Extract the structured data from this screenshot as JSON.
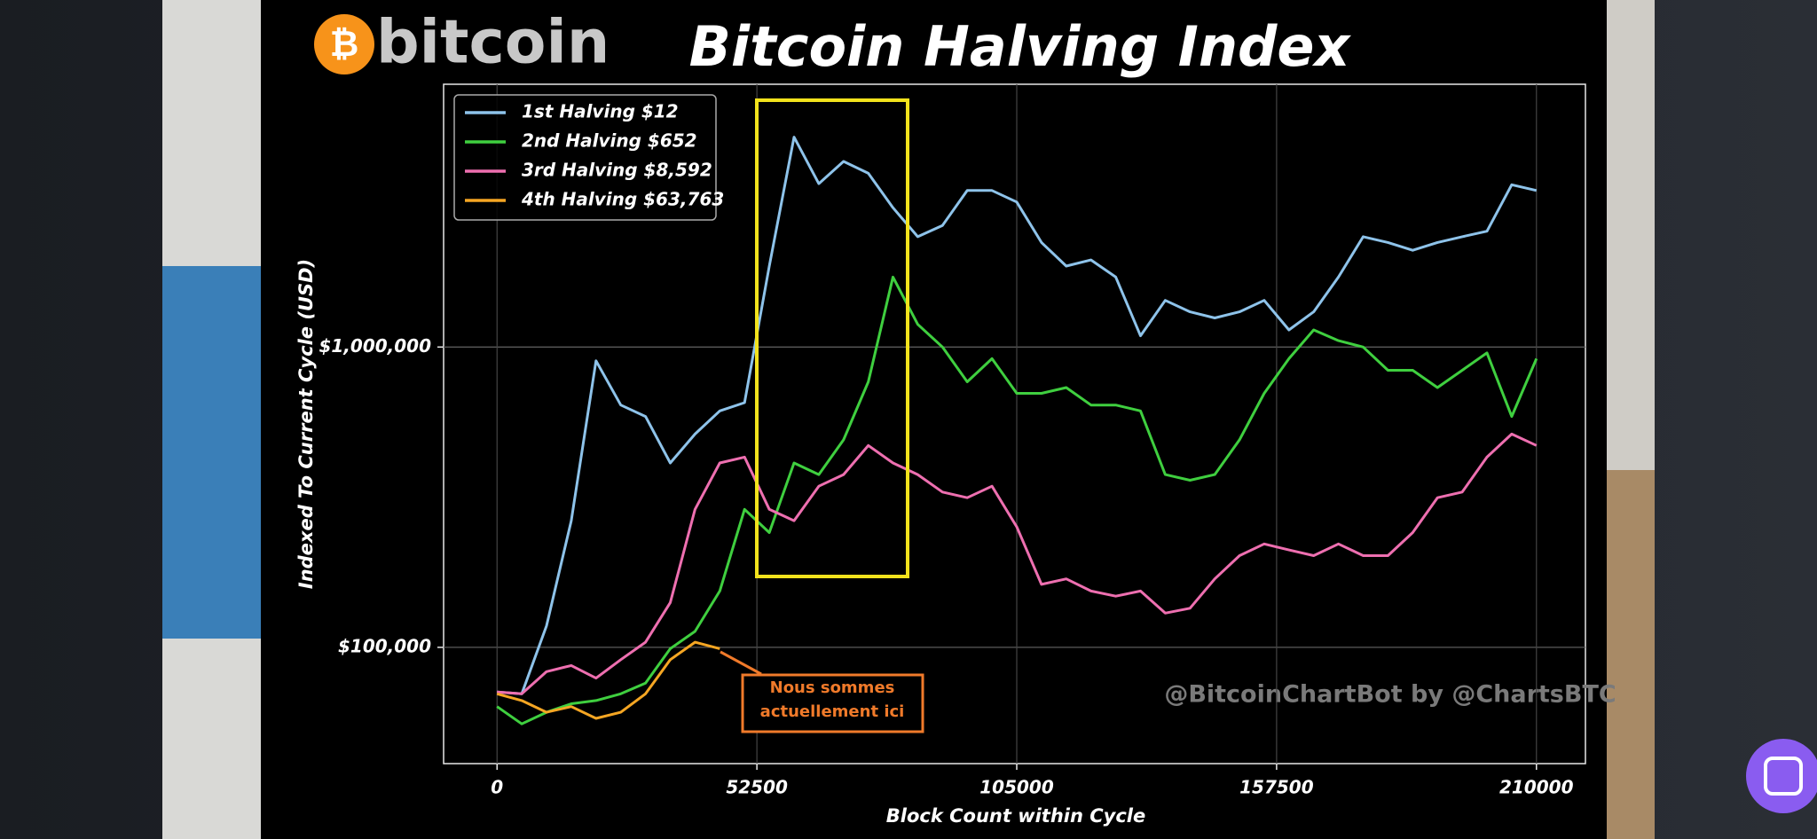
{
  "chart_data": {
    "type": "line",
    "title": "Bitcoin Halving Index",
    "logo_text": "bitcoin",
    "xlabel": "Block Count within Cycle",
    "ylabel": "Indexed To Current Cycle (USD)",
    "annotation": [
      "Nous sommes",
      "actuellement ici"
    ],
    "watermark": "@BitcoinChartBot by @ChartsBTC",
    "log_y": true,
    "grid": true,
    "legend": "upper left",
    "xlim": [
      -10800,
      219900
    ],
    "ylim": [
      41000,
      7500000
    ],
    "xticks": [
      0,
      52500,
      105000,
      157500,
      210000
    ],
    "yticks": [
      {
        "value": 100000,
        "label": "$100,000"
      },
      {
        "value": 1000000,
        "label": "$1,000,000"
      }
    ],
    "x": [
      0,
      5000,
      10000,
      15000,
      20000,
      25000,
      30000,
      35000,
      40000,
      45000,
      50000,
      55000,
      60000,
      65000,
      70000,
      75000,
      80000,
      85000,
      90000,
      95000,
      100000,
      105000,
      110000,
      115000,
      120000,
      125000,
      130000,
      135000,
      140000,
      145000,
      150000,
      155000,
      160000,
      165000,
      170000,
      175000,
      180000,
      185000,
      190000,
      195000,
      200000,
      205000,
      210000
    ],
    "series": [
      {
        "name": "1st Halving $12",
        "color": "#8ec3ea",
        "values": [
          71000,
          70000,
          118000,
          264000,
          900000,
          641000,
          587000,
          411000,
          513000,
          613000,
          653000,
          1860000,
          5000000,
          3500000,
          4150000,
          3790000,
          2910000,
          2330000,
          2540000,
          3320000,
          3320000,
          3040000,
          2230000,
          1860000,
          1950000,
          1710000,
          1090000,
          1430000,
          1310000,
          1250000,
          1310000,
          1430000,
          1140000,
          1310000,
          1710000,
          2330000,
          2230000,
          2100000,
          2230000,
          2330000,
          2430000,
          3470000,
          3320000
        ]
      },
      {
        "name": "2nd Halving $652",
        "color": "#3fcf3f",
        "values": [
          63500,
          55600,
          60800,
          64900,
          66500,
          70000,
          76000,
          99000,
          113000,
          154000,
          288000,
          241000,
          411000,
          376000,
          491000,
          766000,
          1710000,
          1190000,
          1000000,
          766000,
          915000,
          701000,
          701000,
          733000,
          641000,
          641000,
          613000,
          376000,
          360000,
          376000,
          491000,
          701000,
          915000,
          1140000,
          1050000,
          1000000,
          837000,
          837000,
          733000,
          837000,
          956000,
          587000,
          915000
        ]
      },
      {
        "name": "3rd Halving $8,592",
        "color": "#ee6fb0",
        "values": [
          71000,
          70000,
          83000,
          87000,
          79000,
          91000,
          104000,
          141000,
          288000,
          411000,
          430000,
          288000,
          264000,
          344000,
          376000,
          470000,
          411000,
          376000,
          329000,
          315000,
          344000,
          252000,
          162000,
          169000,
          154000,
          148000,
          154000,
          130000,
          135000,
          169000,
          202000,
          221000,
          211000,
          202000,
          221000,
          202000,
          202000,
          241000,
          315000,
          329000,
          430000,
          513000,
          470000
        ]
      },
      {
        "name": "4th Halving $63,763",
        "color": "#f5a623",
        "values": [
          70000,
          66500,
          60800,
          63500,
          58000,
          60800,
          70000,
          91000,
          104000,
          99000,
          null,
          null,
          null,
          null,
          null,
          null,
          null,
          null,
          null,
          null,
          null,
          null,
          null,
          null,
          null,
          null,
          null,
          null,
          null,
          null,
          null,
          null,
          null,
          null,
          null,
          null,
          null,
          null,
          null,
          null,
          null,
          null,
          null
        ]
      }
    ]
  }
}
